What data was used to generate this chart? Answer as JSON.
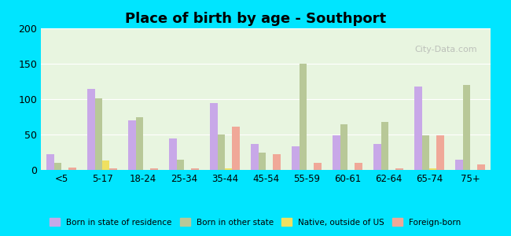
{
  "title": "Place of birth by age - Southport",
  "categories": [
    "<5",
    "5-17",
    "18-24",
    "25-34",
    "35-44",
    "45-54",
    "55-59",
    "60-61",
    "62-64",
    "65-74",
    "75+"
  ],
  "series": {
    "Born in state of residence": [
      22,
      115,
      70,
      45,
      95,
      37,
      33,
      49,
      37,
      118,
      14
    ],
    "Born in other state": [
      10,
      101,
      75,
      14,
      50,
      25,
      150,
      65,
      68,
      49,
      120
    ],
    "Native, outside of US": [
      0,
      13,
      0,
      0,
      2,
      0,
      0,
      0,
      0,
      2,
      0
    ],
    "Foreign-born": [
      3,
      2,
      2,
      2,
      61,
      22,
      10,
      10,
      2,
      49,
      8
    ]
  },
  "colors": {
    "Born in state of residence": "#c8a8e8",
    "Born in other state": "#b8c898",
    "Native, outside of US": "#f0e060",
    "Foreign-born": "#f0a898"
  },
  "ylim": [
    0,
    200
  ],
  "yticks": [
    0,
    50,
    100,
    150,
    200
  ],
  "background_color": "#e8f5e0",
  "outer_background": "#00e5ff",
  "watermark": "City-Data.com"
}
